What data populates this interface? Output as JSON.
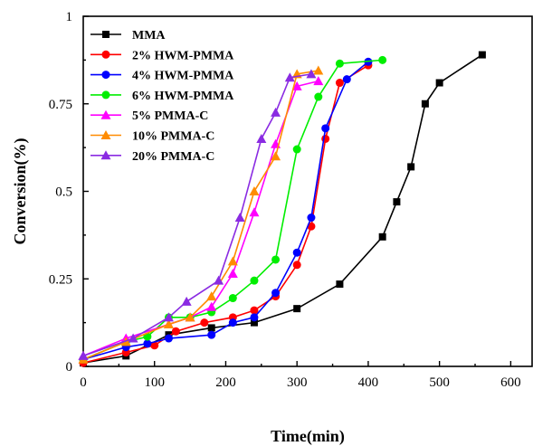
{
  "chart_data": {
    "type": "line",
    "xlabel": "Time(min)",
    "ylabel": "Conversion(%)",
    "xlim": [
      0,
      630
    ],
    "ylim": [
      0,
      1
    ],
    "x_ticks": [
      0,
      100,
      200,
      300,
      400,
      500,
      600
    ],
    "y_ticks": [
      0,
      0.25,
      0.5,
      0.75,
      1
    ],
    "y_tick_labels": [
      "0",
      "0.25",
      "0.5",
      "0.75",
      "1"
    ],
    "grid": false,
    "legend_position": "top-left",
    "series": [
      {
        "name": "MMA",
        "color": "#000000",
        "marker": "square",
        "x": [
          0,
          60,
          120,
          180,
          240,
          300,
          360,
          420,
          440,
          460,
          480,
          500,
          560
        ],
        "y": [
          0.01,
          0.03,
          0.09,
          0.11,
          0.125,
          0.165,
          0.235,
          0.37,
          0.47,
          0.57,
          0.75,
          0.81,
          0.89
        ]
      },
      {
        "name": "2% HWM-PMMA",
        "color": "#ff0000",
        "marker": "circle",
        "x": [
          0,
          60,
          100,
          130,
          170,
          210,
          240,
          270,
          300,
          320,
          340,
          360,
          400
        ],
        "y": [
          0.01,
          0.04,
          0.06,
          0.1,
          0.125,
          0.14,
          0.16,
          0.2,
          0.29,
          0.4,
          0.65,
          0.81,
          0.86
        ]
      },
      {
        "name": "4% HWM-PMMA",
        "color": "#0000ff",
        "marker": "circle",
        "x": [
          0,
          60,
          90,
          120,
          180,
          210,
          240,
          270,
          300,
          320,
          340,
          370,
          400
        ],
        "y": [
          0.02,
          0.055,
          0.065,
          0.08,
          0.09,
          0.125,
          0.14,
          0.21,
          0.325,
          0.425,
          0.68,
          0.82,
          0.87
        ]
      },
      {
        "name": "6% HWM-PMMA",
        "color": "#00ee00",
        "marker": "circle",
        "x": [
          0,
          60,
          90,
          120,
          150,
          180,
          210,
          240,
          270,
          300,
          330,
          360,
          420
        ],
        "y": [
          0.02,
          0.07,
          0.085,
          0.14,
          0.14,
          0.155,
          0.195,
          0.245,
          0.305,
          0.62,
          0.77,
          0.865,
          0.875
        ]
      },
      {
        "name": "5% PMMA-C",
        "color": "#ff00ff",
        "marker": "triangle",
        "x": [
          0,
          60,
          120,
          150,
          180,
          210,
          240,
          270,
          300,
          330
        ],
        "y": [
          0.03,
          0.08,
          0.12,
          0.14,
          0.17,
          0.265,
          0.44,
          0.635,
          0.8,
          0.815
        ]
      },
      {
        "name": "10% PMMA-C",
        "color": "#ff8c00",
        "marker": "triangle",
        "x": [
          0,
          60,
          120,
          150,
          180,
          210,
          240,
          270,
          300,
          330
        ],
        "y": [
          0.02,
          0.07,
          0.12,
          0.14,
          0.2,
          0.3,
          0.5,
          0.6,
          0.835,
          0.845
        ]
      },
      {
        "name": "20% PMMA-C",
        "color": "#8a2be2",
        "marker": "triangle",
        "x": [
          0,
          70,
          120,
          145,
          190,
          220,
          250,
          270,
          290,
          320
        ],
        "y": [
          0.03,
          0.08,
          0.14,
          0.185,
          0.245,
          0.425,
          0.65,
          0.725,
          0.825,
          0.835
        ]
      }
    ]
  }
}
